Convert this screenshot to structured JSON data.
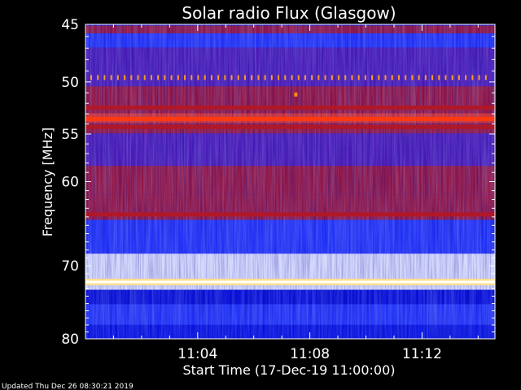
{
  "chart_data": {
    "type": "heatmap",
    "title": "Solar radio Flux (Glasgow)",
    "xlabel": "Start Time (17-Dec-19 11:00:00)",
    "ylabel": "Frequency [MHz]",
    "y_scale": "log",
    "ylim": [
      45,
      80
    ],
    "xlim_minutes": [
      0,
      14.6
    ],
    "y_ticks": [
      45,
      50,
      55,
      60,
      70,
      80
    ],
    "y_tick_labels": [
      "45",
      "50",
      "55",
      "60",
      "70",
      "80"
    ],
    "x_ticks_minutes": [
      4,
      8,
      12
    ],
    "x_tick_labels": [
      "11:04",
      "11:08",
      "11:12"
    ],
    "colormap": [
      "#00007c",
      "#0a10d8",
      "#2a3cff",
      "#5a1eb0",
      "#b01828",
      "#ff3a10",
      "#ffe08c",
      "#ffffff"
    ],
    "bands": [
      {
        "f": 45.2,
        "intensity": 0.55
      },
      {
        "f": 46.3,
        "intensity": 0.3
      },
      {
        "f": 47.6,
        "intensity": 0.4
      },
      {
        "f": 49.6,
        "intensity": 0.45
      },
      {
        "f": 51.2,
        "intensity": 0.55
      },
      {
        "f": 52.4,
        "intensity": 0.62
      },
      {
        "f": 53.5,
        "intensity": 0.68
      },
      {
        "f": 54.3,
        "intensity": 0.62
      },
      {
        "f": 55.6,
        "intensity": 0.45
      },
      {
        "f": 57.3,
        "intensity": 0.38
      },
      {
        "f": 59.3,
        "intensity": 0.55
      },
      {
        "f": 63.7,
        "intensity": 0.62
      },
      {
        "f": 65.0,
        "intensity": 0.25
      },
      {
        "f": 72.1,
        "intensity": 1.0
      },
      {
        "f": 74.2,
        "intensity": 0.18
      },
      {
        "f": 76.0,
        "intensity": 0.22
      }
    ],
    "pulse_train": {
      "f": 49.6,
      "count": 60,
      "color": "#ff9a2a"
    },
    "spot": {
      "t_minutes": 7.5,
      "f": 51.2,
      "color": "#ff8a10"
    }
  },
  "footer": {
    "updated": "Updated Thu Dec 26 08:30:21 2019"
  }
}
